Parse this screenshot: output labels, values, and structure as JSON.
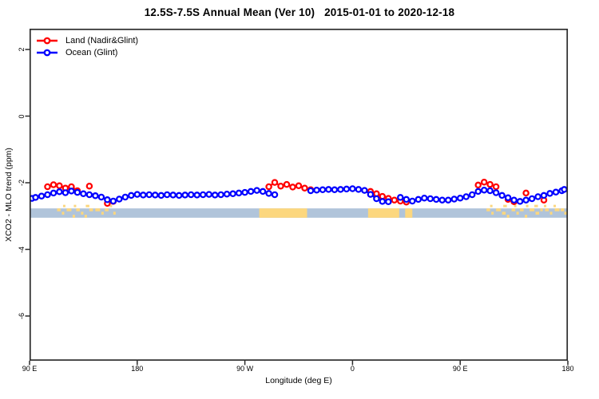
{
  "title": "12.5S-7.5S Annual Mean (Ver 10)   2015-01-01 to 2020-12-18",
  "legend": {
    "items": [
      {
        "label": "Land (Nadir&Glint)",
        "color": "#ff0000"
      },
      {
        "label": "Ocean (Glint)",
        "color": "#0000ff"
      }
    ]
  },
  "chart_data": {
    "type": "line",
    "title": "12.5S-7.5S Annual Mean (Ver 10)   2015-01-01 to 2020-12-18",
    "xlabel": "Longitude (deg E)",
    "ylabel": "XCO2 - MLO trend (ppm)",
    "legend_position": "top-left",
    "grid": false,
    "x_axis_note": "longitude axis wraps eastward: 90E, 180, 90W, 0, 90E, 180 (450 deg span)",
    "xlim_axis_deg": [
      90,
      540
    ],
    "ylim": [
      -7.35,
      2.6
    ],
    "x_ticks": [
      {
        "axis_deg": 90,
        "label": "90 E"
      },
      {
        "axis_deg": 180,
        "label": "180"
      },
      {
        "axis_deg": 270,
        "label": "90 W"
      },
      {
        "axis_deg": 360,
        "label": "0"
      },
      {
        "axis_deg": 450,
        "label": "90 E"
      },
      {
        "axis_deg": 540,
        "label": "180"
      }
    ],
    "y_ticks": [
      {
        "value": 2,
        "label": "2"
      },
      {
        "value": 0,
        "label": "0"
      },
      {
        "value": -2,
        "label": "-2"
      },
      {
        "value": -4,
        "label": "-4"
      },
      {
        "value": -6,
        "label": "-6"
      }
    ],
    "series": [
      {
        "name": "Land (Nadir&Glint)",
        "color": "#ff0000",
        "marker": "open-circle",
        "points": [
          [
            105,
            -2.12
          ],
          [
            110,
            -2.06
          ],
          [
            115,
            -2.09
          ],
          [
            120,
            -2.16
          ],
          [
            125,
            -2.12
          ],
          [
            130,
            -2.24
          ],
          [
            140,
            -2.1
          ],
          [
            155,
            -2.62
          ],
          [
            160,
            -2.56
          ],
          [
            290,
            -2.12
          ],
          [
            295,
            -1.99
          ],
          [
            300,
            -2.1
          ],
          [
            305,
            -2.05
          ],
          [
            310,
            -2.13
          ],
          [
            315,
            -2.09
          ],
          [
            320,
            -2.16
          ],
          [
            325,
            -2.21
          ],
          [
            375,
            -2.26
          ],
          [
            380,
            -2.33
          ],
          [
            385,
            -2.41
          ],
          [
            390,
            -2.47
          ],
          [
            395,
            -2.52
          ],
          [
            400,
            -2.55
          ],
          [
            405,
            -2.58
          ],
          [
            465,
            -2.07
          ],
          [
            470,
            -1.98
          ],
          [
            475,
            -2.05
          ],
          [
            480,
            -2.12
          ],
          [
            490,
            -2.5
          ],
          [
            495,
            -2.57
          ],
          [
            505,
            -2.31
          ],
          [
            520,
            -2.52
          ]
        ]
      },
      {
        "name": "Ocean (Glint)",
        "color": "#0000ff",
        "marker": "open-circle",
        "points": [
          [
            92,
            -2.47
          ],
          [
            95,
            -2.44
          ],
          [
            100,
            -2.4
          ],
          [
            105,
            -2.36
          ],
          [
            110,
            -2.31
          ],
          [
            115,
            -2.27
          ],
          [
            120,
            -2.3
          ],
          [
            125,
            -2.25
          ],
          [
            130,
            -2.29
          ],
          [
            135,
            -2.33
          ],
          [
            140,
            -2.36
          ],
          [
            145,
            -2.39
          ],
          [
            150,
            -2.43
          ],
          [
            155,
            -2.51
          ],
          [
            160,
            -2.55
          ],
          [
            165,
            -2.49
          ],
          [
            170,
            -2.43
          ],
          [
            175,
            -2.38
          ],
          [
            180,
            -2.35
          ],
          [
            185,
            -2.37
          ],
          [
            190,
            -2.36
          ],
          [
            195,
            -2.37
          ],
          [
            200,
            -2.38
          ],
          [
            205,
            -2.36
          ],
          [
            210,
            -2.37
          ],
          [
            215,
            -2.38
          ],
          [
            220,
            -2.37
          ],
          [
            225,
            -2.36
          ],
          [
            230,
            -2.37
          ],
          [
            235,
            -2.36
          ],
          [
            240,
            -2.35
          ],
          [
            245,
            -2.37
          ],
          [
            250,
            -2.36
          ],
          [
            255,
            -2.34
          ],
          [
            260,
            -2.33
          ],
          [
            265,
            -2.31
          ],
          [
            270,
            -2.29
          ],
          [
            275,
            -2.26
          ],
          [
            280,
            -2.23
          ],
          [
            285,
            -2.26
          ],
          [
            290,
            -2.32
          ],
          [
            295,
            -2.36
          ],
          [
            325,
            -2.24
          ],
          [
            330,
            -2.22
          ],
          [
            335,
            -2.21
          ],
          [
            340,
            -2.2
          ],
          [
            345,
            -2.21
          ],
          [
            350,
            -2.2
          ],
          [
            355,
            -2.19
          ],
          [
            360,
            -2.18
          ],
          [
            365,
            -2.2
          ],
          [
            370,
            -2.23
          ],
          [
            375,
            -2.35
          ],
          [
            380,
            -2.48
          ],
          [
            385,
            -2.56
          ],
          [
            390,
            -2.57
          ],
          [
            400,
            -2.44
          ],
          [
            405,
            -2.5
          ],
          [
            410,
            -2.55
          ],
          [
            415,
            -2.5
          ],
          [
            420,
            -2.46
          ],
          [
            425,
            -2.48
          ],
          [
            430,
            -2.5
          ],
          [
            435,
            -2.52
          ],
          [
            440,
            -2.52
          ],
          [
            445,
            -2.49
          ],
          [
            450,
            -2.46
          ],
          [
            455,
            -2.42
          ],
          [
            460,
            -2.36
          ],
          [
            465,
            -2.26
          ],
          [
            470,
            -2.22
          ],
          [
            475,
            -2.24
          ],
          [
            480,
            -2.3
          ],
          [
            485,
            -2.38
          ],
          [
            490,
            -2.45
          ],
          [
            495,
            -2.52
          ],
          [
            500,
            -2.56
          ],
          [
            505,
            -2.52
          ],
          [
            510,
            -2.48
          ],
          [
            515,
            -2.42
          ],
          [
            520,
            -2.38
          ],
          [
            525,
            -2.32
          ],
          [
            530,
            -2.28
          ],
          [
            535,
            -2.24
          ],
          [
            537,
            -2.2
          ]
        ]
      }
    ],
    "map_strip": {
      "description": "latitude-band world map strip drawn across plot",
      "ocean_color": "#b0c4da",
      "land_color": "#fcd77e",
      "band_ppm": [
        -2.77,
        -3.05
      ],
      "land_solid_deg": [
        [
          282,
          322
        ],
        [
          373,
          399
        ],
        [
          404,
          410
        ]
      ],
      "speckles": [
        [
          113,
          3,
          "top"
        ],
        [
          117,
          2,
          "mid"
        ],
        [
          121,
          4,
          "top"
        ],
        [
          126,
          2,
          "bot"
        ],
        [
          129,
          3,
          "top"
        ],
        [
          133,
          2,
          "mid"
        ],
        [
          136,
          2,
          "bot"
        ],
        [
          140,
          3,
          "top"
        ],
        [
          145,
          4,
          "top"
        ],
        [
          150,
          2,
          "mid"
        ],
        [
          153,
          3,
          "top"
        ],
        [
          157,
          2,
          "above"
        ],
        [
          160,
          2,
          "mid"
        ],
        [
          118,
          2,
          "above"
        ],
        [
          127,
          2,
          "above"
        ],
        [
          137,
          3,
          "above"
        ],
        [
          472,
          3,
          "top"
        ],
        [
          476,
          2,
          "mid"
        ],
        [
          480,
          4,
          "top"
        ],
        [
          485,
          3,
          "mid"
        ],
        [
          489,
          2,
          "bot"
        ],
        [
          493,
          3,
          "top"
        ],
        [
          497,
          2,
          "mid"
        ],
        [
          500,
          3,
          "top"
        ],
        [
          504,
          2,
          "bot"
        ],
        [
          508,
          4,
          "top"
        ],
        [
          513,
          3,
          "mid"
        ],
        [
          517,
          2,
          "top"
        ],
        [
          521,
          3,
          "top"
        ],
        [
          525,
          2,
          "mid"
        ],
        [
          529,
          4,
          "top"
        ],
        [
          534,
          3,
          "top"
        ],
        [
          537,
          2,
          "mid"
        ],
        [
          475,
          2,
          "above"
        ],
        [
          486,
          3,
          "above"
        ],
        [
          495,
          2,
          "above"
        ],
        [
          505,
          2,
          "above"
        ],
        [
          512,
          3,
          "above"
        ],
        [
          520,
          2,
          "above"
        ],
        [
          528,
          2,
          "above"
        ]
      ]
    }
  }
}
